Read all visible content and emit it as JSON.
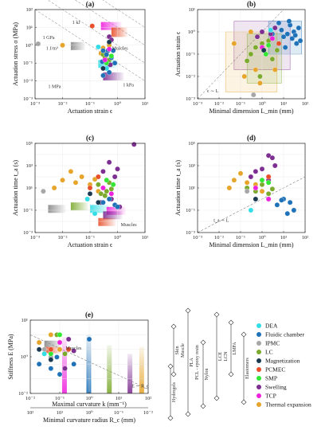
{
  "series": [
    {
      "key": "dea",
      "name": "DEA",
      "color": "#33dde6"
    },
    {
      "key": "fluidic",
      "name": "Fluidic chamber",
      "color": "#1f72b8"
    },
    {
      "key": "ipmc",
      "name": "IPMC",
      "color": "#a6a6a6"
    },
    {
      "key": "lc",
      "name": "LC",
      "color": "#7caa2d"
    },
    {
      "key": "mag",
      "name": "Magnetization",
      "color": "#1a3a52"
    },
    {
      "key": "pcmec",
      "name": "PCMEC",
      "color": "#e8502a"
    },
    {
      "key": "smp",
      "name": "SMP",
      "color": "#33e833"
    },
    {
      "key": "swelling",
      "name": "Swelling",
      "color": "#7d2e91"
    },
    {
      "key": "tcp",
      "name": "TCP",
      "color": "#ee22dd"
    },
    {
      "key": "thermal",
      "name": "Thermal expansion",
      "color": "#e6a52a"
    }
  ],
  "chart_data": [
    {
      "panel": "(a)",
      "type": "scatter",
      "xlabel": "Actuation strain ϵ",
      "ylabel": "Actuation stress σ (MPa)",
      "xscale": "log",
      "yscale": "log",
      "xlim": [
        0.001,
        10
      ],
      "ylim": [
        0.001,
        100
      ],
      "xticks": [
        "10⁻³",
        "10⁻²",
        "10⁻¹",
        "10⁰",
        "10¹"
      ],
      "yticks": [
        "10⁻³",
        "10⁻²",
        "10⁻¹",
        "10⁰",
        "10¹",
        "10²"
      ],
      "annotations": [
        "Muscles",
        "1 kJ",
        "1 J/m³",
        "1 GPa",
        "1 MPa",
        "1 kPa"
      ],
      "points": [
        {
          "s": "pcmec",
          "x": 0.12,
          "y": 12
        },
        {
          "s": "ipmc",
          "x": 0.0013,
          "y": 1.2
        },
        {
          "s": "thermal",
          "x": 0.01,
          "y": 1.0
        },
        {
          "s": "thermal",
          "x": 0.5,
          "y": 1.0
        },
        {
          "s": "thermal",
          "x": 0.3,
          "y": 0.7
        },
        {
          "s": "thermal",
          "x": 0.25,
          "y": 0.35
        },
        {
          "s": "lc",
          "x": 0.3,
          "y": 0.3
        },
        {
          "s": "lc",
          "x": 0.4,
          "y": 0.4
        },
        {
          "s": "lc",
          "x": 0.35,
          "y": 0.2
        },
        {
          "s": "lc",
          "x": 0.5,
          "y": 0.15
        },
        {
          "s": "fluidic",
          "x": 0.45,
          "y": 0.5
        },
        {
          "s": "fluidic",
          "x": 0.3,
          "y": 0.5
        },
        {
          "s": "fluidic",
          "x": 0.5,
          "y": 0.08
        },
        {
          "s": "fluidic",
          "x": 0.3,
          "y": 0.02
        },
        {
          "s": "fluidic",
          "x": 0.5,
          "y": 0.03
        },
        {
          "s": "fluidic",
          "x": 0.4,
          "y": 0.3
        },
        {
          "s": "fluidic",
          "x": 0.6,
          "y": 0.2
        },
        {
          "s": "fluidic",
          "x": 0.7,
          "y": 0.5
        },
        {
          "s": "fluidic",
          "x": 0.28,
          "y": 0.12
        },
        {
          "s": "fluidic",
          "x": 0.8,
          "y": 0.1
        },
        {
          "s": "swelling",
          "x": 0.5,
          "y": 3
        },
        {
          "s": "swelling",
          "x": 0.6,
          "y": 2
        },
        {
          "s": "swelling",
          "x": 0.55,
          "y": 0.08
        },
        {
          "s": "smp",
          "x": 0.4,
          "y": 0.1
        },
        {
          "s": "smp",
          "x": 0.6,
          "y": 0.25
        },
        {
          "s": "tcp",
          "x": 0.35,
          "y": 0.15
        },
        {
          "s": "tcp",
          "x": 0.5,
          "y": 0.6
        },
        {
          "s": "dea",
          "x": 0.4,
          "y": 0.05
        },
        {
          "s": "dea",
          "x": 0.2,
          "y": 0.8
        },
        {
          "s": "mag",
          "x": 0.3,
          "y": 0.05
        },
        {
          "s": "mag",
          "x": 0.5,
          "y": 1.5
        }
      ]
    },
    {
      "panel": "(b)",
      "type": "scatter",
      "xlabel": "Minimal dimension L_min (mm)",
      "ylabel": "Actuation strain ϵ",
      "xscale": "log",
      "yscale": "log",
      "xlim": [
        0.001,
        100
      ],
      "ylim": [
        0.001,
        10
      ],
      "xticks": [
        "10⁻³",
        "10⁻²",
        "10⁻¹",
        "10⁰",
        "10¹",
        "10²"
      ],
      "yticks": [
        "10⁻³",
        "10⁻²",
        "10⁻¹",
        "10⁰",
        "10¹"
      ],
      "annotations": [
        "ϵ ∼ L"
      ],
      "points": [
        {
          "s": "fluidic",
          "x": 20,
          "y": 2
        },
        {
          "s": "fluidic",
          "x": 30,
          "y": 1
        },
        {
          "s": "fluidic",
          "x": 15,
          "y": 0.8
        },
        {
          "s": "fluidic",
          "x": 25,
          "y": 0.5
        },
        {
          "s": "fluidic",
          "x": 40,
          "y": 0.3
        },
        {
          "s": "fluidic",
          "x": 10,
          "y": 0.6
        },
        {
          "s": "fluidic",
          "x": 50,
          "y": 1.5
        },
        {
          "s": "fluidic",
          "x": 8,
          "y": 1.2
        },
        {
          "s": "fluidic",
          "x": 35,
          "y": 0.7
        },
        {
          "s": "fluidic",
          "x": 12,
          "y": 0.2
        },
        {
          "s": "fluidic",
          "x": 6,
          "y": 2.5
        },
        {
          "s": "fluidic",
          "x": 60,
          "y": 0.4
        },
        {
          "s": "fluidic",
          "x": 18,
          "y": 3
        },
        {
          "s": "fluidic",
          "x": 3,
          "y": 0.8
        },
        {
          "s": "lc",
          "x": 1,
          "y": 0.3
        },
        {
          "s": "lc",
          "x": 0.5,
          "y": 0.2
        },
        {
          "s": "lc",
          "x": 2,
          "y": 0.4
        },
        {
          "s": "lc",
          "x": 0.3,
          "y": 0.1
        },
        {
          "s": "lc",
          "x": 5,
          "y": 0.15
        },
        {
          "s": "lc",
          "x": 0.2,
          "y": 0.05
        },
        {
          "s": "lc",
          "x": 0.8,
          "y": 0.01
        },
        {
          "s": "lc",
          "x": 3,
          "y": 0.06
        },
        {
          "s": "swelling",
          "x": 1,
          "y": 1
        },
        {
          "s": "swelling",
          "x": 4,
          "y": 1.5
        },
        {
          "s": "swelling",
          "x": 0.6,
          "y": 0.6
        },
        {
          "s": "swelling",
          "x": 2.5,
          "y": 0.8
        },
        {
          "s": "thermal",
          "x": 0.05,
          "y": 0.3
        },
        {
          "s": "thermal",
          "x": 0.3,
          "y": 1
        },
        {
          "s": "thermal",
          "x": 0.15,
          "y": 0.01
        },
        {
          "s": "thermal",
          "x": 0.8,
          "y": 0.005
        },
        {
          "s": "thermal",
          "x": 0.5,
          "y": 0.02
        },
        {
          "s": "thermal",
          "x": 4,
          "y": 0.02
        },
        {
          "s": "smp",
          "x": 1.5,
          "y": 0.1
        },
        {
          "s": "smp",
          "x": 2,
          "y": 0.25
        },
        {
          "s": "tcp",
          "x": 1,
          "y": 0.2
        },
        {
          "s": "tcp",
          "x": 3,
          "y": 0.5
        },
        {
          "s": "dea",
          "x": 2.5,
          "y": 1.2
        },
        {
          "s": "ipmc",
          "x": 0.4,
          "y": 0.0015
        },
        {
          "s": "mag",
          "x": 1.2,
          "y": 0.15
        },
        {
          "s": "pcmec",
          "x": 6,
          "y": 0.3
        }
      ]
    },
    {
      "panel": "(c)",
      "type": "scatter",
      "xlabel": "Actuation strain ϵ",
      "ylabel": "Actuation time t_a (s)",
      "xscale": "log",
      "yscale": "log",
      "xlim": [
        0.001,
        10
      ],
      "ylim": [
        0.001,
        100000
      ],
      "xticks": [
        "10⁻³",
        "10⁻²",
        "10⁻¹",
        "10⁰",
        "10¹"
      ],
      "yticks": [
        "10⁻³",
        "10⁻¹",
        "10¹",
        "10³",
        "10⁵"
      ],
      "annotations": [
        "Muscles"
      ],
      "points": [
        {
          "s": "swelling",
          "x": 4,
          "y": 80000
        },
        {
          "s": "swelling",
          "x": 0.5,
          "y": 2000
        },
        {
          "s": "swelling",
          "x": 0.3,
          "y": 300
        },
        {
          "s": "swelling",
          "x": 1,
          "y": 500
        },
        {
          "s": "swelling",
          "x": 0.8,
          "y": 100
        },
        {
          "s": "swelling",
          "x": 0.6,
          "y": 1
        },
        {
          "s": "swelling",
          "x": 0.25,
          "y": 0.5
        },
        {
          "s": "swelling",
          "x": 1.2,
          "y": 0.2
        },
        {
          "s": "thermal",
          "x": 0.01,
          "y": 50
        },
        {
          "s": "thermal",
          "x": 0.02,
          "y": 300
        },
        {
          "s": "thermal",
          "x": 0.05,
          "y": 100
        },
        {
          "s": "thermal",
          "x": 0.03,
          "y": 30
        },
        {
          "s": "thermal",
          "x": 0.1,
          "y": 20
        },
        {
          "s": "thermal",
          "x": 0.005,
          "y": 10
        },
        {
          "s": "thermal",
          "x": 0.2,
          "y": 5
        },
        {
          "s": "thermal",
          "x": 0.15,
          "y": 60
        },
        {
          "s": "lc",
          "x": 0.2,
          "y": 20
        },
        {
          "s": "lc",
          "x": 0.3,
          "y": 10
        },
        {
          "s": "lc",
          "x": 0.4,
          "y": 5
        },
        {
          "s": "lc",
          "x": 0.25,
          "y": 3
        },
        {
          "s": "lc",
          "x": 0.5,
          "y": 30
        },
        {
          "s": "lc",
          "x": 0.35,
          "y": 2
        },
        {
          "s": "lc",
          "x": 0.6,
          "y": 8
        },
        {
          "s": "fluidic",
          "x": 0.5,
          "y": 1
        },
        {
          "s": "fluidic",
          "x": 0.8,
          "y": 0.3
        },
        {
          "s": "fluidic",
          "x": 0.3,
          "y": 0.5
        },
        {
          "s": "fluidic",
          "x": 1,
          "y": 0.2
        },
        {
          "s": "smp",
          "x": 0.4,
          "y": 50
        },
        {
          "s": "smp",
          "x": 0.7,
          "y": 20
        },
        {
          "s": "tcp",
          "x": 0.3,
          "y": 10
        },
        {
          "s": "tcp",
          "x": 0.6,
          "y": 3
        },
        {
          "s": "pcmec",
          "x": 0.1,
          "y": 10
        },
        {
          "s": "pcmec",
          "x": 0.2,
          "y": 100
        },
        {
          "s": "ipmc",
          "x": 0.002,
          "y": 5
        },
        {
          "s": "mag",
          "x": 0.1,
          "y": 3
        },
        {
          "s": "mag",
          "x": 0.2,
          "y": 0.5
        },
        {
          "s": "dea",
          "x": 0.15,
          "y": 0.05
        },
        {
          "s": "dea",
          "x": 0.08,
          "y": 1
        }
      ]
    },
    {
      "panel": "(d)",
      "type": "scatter",
      "xlabel": "Minimal dimension L_min (mm)",
      "ylabel": "Actuation time t_a (s)",
      "xscale": "log",
      "yscale": "log",
      "xlim": [
        0.001,
        100
      ],
      "ylim": [
        0.001,
        100000
      ],
      "xticks": [
        "10⁻³",
        "10⁻²",
        "10⁻¹",
        "10⁰",
        "10¹",
        "10²"
      ],
      "yticks": [
        "10⁻³",
        "10⁻¹",
        "10¹",
        "10³",
        "10⁵"
      ],
      "annotations": [
        "t_a ∼ L"
      ],
      "points": [
        {
          "s": "swelling",
          "x": 2,
          "y": 8000
        },
        {
          "s": "swelling",
          "x": 3,
          "y": 5000
        },
        {
          "s": "swelling",
          "x": 1,
          "y": 500
        },
        {
          "s": "swelling",
          "x": 0.5,
          "y": 300
        },
        {
          "s": "swelling",
          "x": 4,
          "y": 1000
        },
        {
          "s": "swelling",
          "x": 0.3,
          "y": 100
        },
        {
          "s": "swelling",
          "x": 2,
          "y": 50
        },
        {
          "s": "thermal",
          "x": 0.05,
          "y": 50
        },
        {
          "s": "thermal",
          "x": 0.1,
          "y": 200
        },
        {
          "s": "thermal",
          "x": 0.2,
          "y": 30
        },
        {
          "s": "thermal",
          "x": 0.03,
          "y": 10
        },
        {
          "s": "thermal",
          "x": 0.5,
          "y": 20
        },
        {
          "s": "thermal",
          "x": 1,
          "y": 5
        },
        {
          "s": "lc",
          "x": 0.2,
          "y": 10
        },
        {
          "s": "lc",
          "x": 0.5,
          "y": 5
        },
        {
          "s": "lc",
          "x": 1,
          "y": 20
        },
        {
          "s": "lc",
          "x": 2,
          "y": 3
        },
        {
          "s": "lc",
          "x": 3,
          "y": 8
        },
        {
          "s": "fluidic",
          "x": 10,
          "y": 1
        },
        {
          "s": "fluidic",
          "x": 20,
          "y": 0.5
        },
        {
          "s": "fluidic",
          "x": 5,
          "y": 0.3
        },
        {
          "s": "fluidic",
          "x": 30,
          "y": 0.1
        },
        {
          "s": "fluidic",
          "x": 15,
          "y": 0.05
        },
        {
          "s": "fluidic",
          "x": 8,
          "y": 0.8
        },
        {
          "s": "smp",
          "x": 1,
          "y": 50
        },
        {
          "s": "smp",
          "x": 2,
          "y": 30
        },
        {
          "s": "tcp",
          "x": 0.5,
          "y": 10
        },
        {
          "s": "tcp",
          "x": 2,
          "y": 1
        },
        {
          "s": "pcmec",
          "x": 2,
          "y": 100
        },
        {
          "s": "dea",
          "x": 0.3,
          "y": 0.1
        },
        {
          "s": "mag",
          "x": 0.5,
          "y": 1
        },
        {
          "s": "ipmc",
          "x": 0.2,
          "y": 5
        }
      ]
    },
    {
      "panel": "(e)",
      "type": "scatter",
      "xlabel": "Maximal curvature k (mm⁻¹)",
      "x2label": "Minimal curvature radius R_c (mm)",
      "ylabel": "Stiffness E (MPa)",
      "xscale": "log",
      "yscale": "log",
      "xlim": [
        0.01,
        100
      ],
      "ylim": [
        0.001,
        100
      ],
      "xticks": [
        "10⁻²",
        "10⁻¹",
        "10⁰",
        "10¹",
        "10²"
      ],
      "x2ticks": [
        "10²",
        "10¹",
        "10⁰",
        "10⁻¹",
        "10⁻²"
      ],
      "yticks": [
        "10⁻²",
        "10⁰",
        "10¹"
      ],
      "annotations": [
        "Muscles",
        "E ∼ R_c"
      ],
      "scale_labels": [
        "Skin",
        "Muscle",
        "PLA",
        "PCL - epoxy resin",
        "Nylon",
        "LCE",
        "LCN",
        "LMPA",
        "Hydrogels",
        "Elastomers"
      ],
      "points": [
        {
          "s": "thermal",
          "x": 0.02,
          "y": 3
        },
        {
          "s": "thermal",
          "x": 0.05,
          "y": 10
        },
        {
          "s": "thermal",
          "x": 0.03,
          "y": 0.5
        },
        {
          "s": "thermal",
          "x": 0.1,
          "y": 1
        },
        {
          "s": "ipmc",
          "x": 0.03,
          "y": 1
        },
        {
          "s": "ipmc",
          "x": 0.05,
          "y": 0.3
        },
        {
          "s": "lc",
          "x": 0.08,
          "y": 10
        },
        {
          "s": "lc",
          "x": 0.1,
          "y": 3
        },
        {
          "s": "lc",
          "x": 0.2,
          "y": 1
        },
        {
          "s": "lc",
          "x": 0.15,
          "y": 0.5
        },
        {
          "s": "fluidic",
          "x": 0.02,
          "y": 0.1
        },
        {
          "s": "fluidic",
          "x": 0.05,
          "y": 0.05
        },
        {
          "s": "fluidic",
          "x": 0.1,
          "y": 0.02
        },
        {
          "s": "fluidic",
          "x": 0.08,
          "y": 0.3
        },
        {
          "s": "fluidic",
          "x": 1,
          "y": 5
        },
        {
          "s": "fluidic",
          "x": 0.3,
          "y": 0.1
        },
        {
          "s": "swelling",
          "x": 0.2,
          "y": 5
        },
        {
          "s": "swelling",
          "x": 0.3,
          "y": 0.8
        },
        {
          "s": "swelling",
          "x": 0.15,
          "y": 0.05
        },
        {
          "s": "smp",
          "x": 0.1,
          "y": 10
        },
        {
          "s": "smp",
          "x": 0.05,
          "y": 0.5
        },
        {
          "s": "tcp",
          "x": 0.1,
          "y": 3
        },
        {
          "s": "pcmec",
          "x": 0.05,
          "y": 1
        },
        {
          "s": "pcmec",
          "x": 0.2,
          "y": 1
        },
        {
          "s": "dea",
          "x": 0.03,
          "y": 0.5
        },
        {
          "s": "mag",
          "x": 0.02,
          "y": 1
        },
        {
          "s": "mag",
          "x": 0.05,
          "y": 0.2
        }
      ]
    }
  ]
}
